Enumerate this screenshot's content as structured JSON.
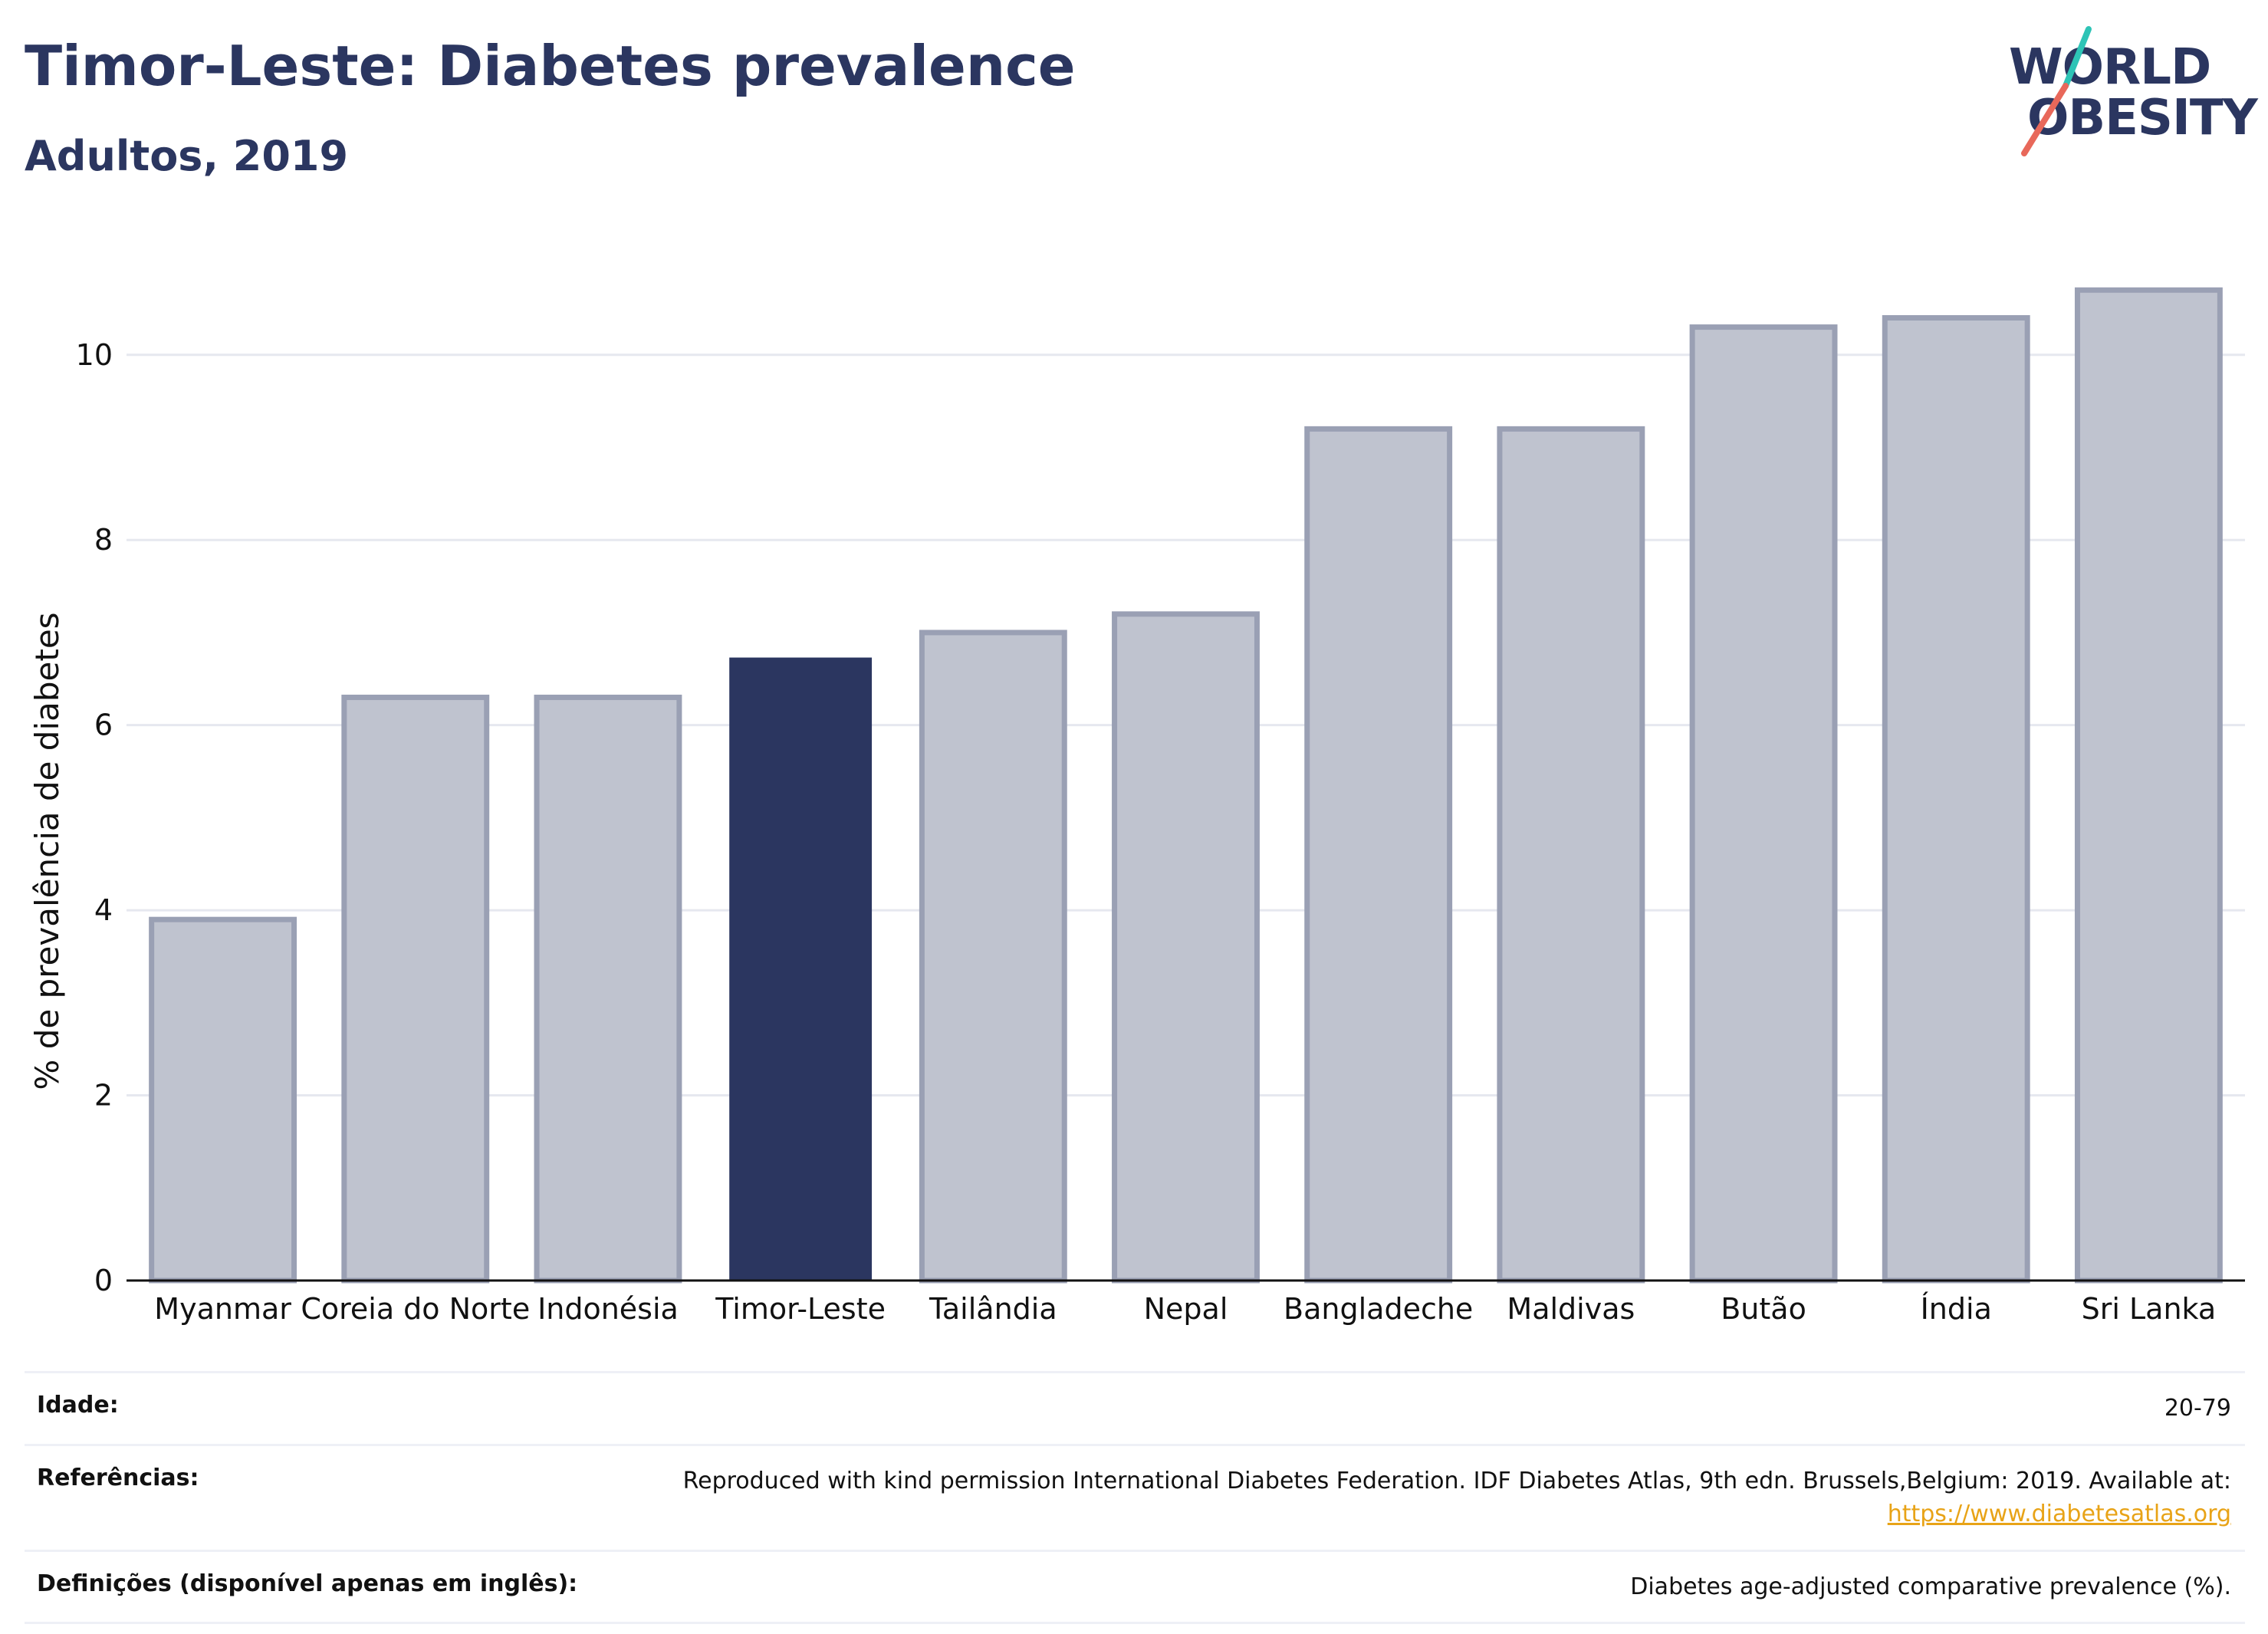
{
  "header": {
    "title": "Timor-Leste: Diabetes prevalence",
    "subtitle": "Adultos, 2019"
  },
  "logo": {
    "line1": "WORLD",
    "line2": "OBESITY",
    "colors": {
      "text": "#2b3660",
      "slash_teal": "#2ec4b6",
      "slash_coral": "#e8685a"
    }
  },
  "chart_data": {
    "type": "bar",
    "categories": [
      "Myanmar",
      "Coreia do Norte",
      "Indonésia",
      "Timor-Leste",
      "Tailândia",
      "Nepal",
      "Bangladeche",
      "Maldivas",
      "Butão",
      "Índia",
      "Sri Lanka"
    ],
    "values": [
      3.9,
      6.3,
      6.3,
      6.73,
      7.0,
      7.2,
      9.2,
      9.2,
      10.3,
      10.4,
      10.7
    ],
    "highlight": "Timor-Leste",
    "ylabel": "% de prevalência de diabetes",
    "xlabel": "",
    "ylim": [
      0,
      11.1
    ],
    "yticks": [
      0,
      2,
      4,
      6,
      8,
      10
    ],
    "grid": true,
    "colors": {
      "highlight": "#2b3660",
      "others_fill": "#bfc3cf",
      "others_stroke": "#9aa0b4",
      "grid": "#e6e8ef",
      "axis": "#111111"
    }
  },
  "info": {
    "rows": [
      {
        "label": "Idade:",
        "value": "20-79",
        "link": ""
      },
      {
        "label": "Referências:",
        "value": "Reproduced with kind permission International Diabetes Federation. IDF Diabetes Atlas, 9th edn. Brussels,Belgium: 2019. Available at:",
        "link": "https://www.diabetesatlas.org"
      },
      {
        "label": "Definições (disponível apenas em inglês):",
        "value": "Diabetes age-adjusted comparative prevalence (%).",
        "link": ""
      }
    ]
  }
}
